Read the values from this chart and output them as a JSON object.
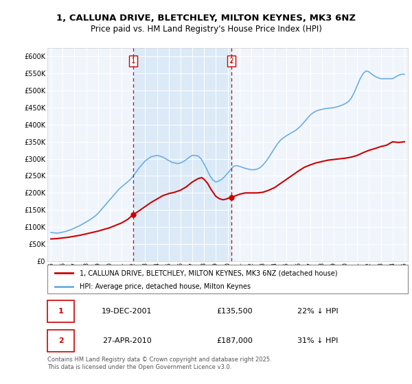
{
  "title1": "1, CALLUNA DRIVE, BLETCHLEY, MILTON KEYNES, MK3 6NZ",
  "title2": "Price paid vs. HM Land Registry's House Price Index (HPI)",
  "legend_line1": "1, CALLUNA DRIVE, BLETCHLEY, MILTON KEYNES, MK3 6NZ (detached house)",
  "legend_line2": "HPI: Average price, detached house, Milton Keynes",
  "transaction1_label": "1",
  "transaction1_date": "19-DEC-2001",
  "transaction1_price": "£135,500",
  "transaction1_hpi": "22% ↓ HPI",
  "transaction2_label": "2",
  "transaction2_date": "27-APR-2010",
  "transaction2_price": "£187,000",
  "transaction2_hpi": "31% ↓ HPI",
  "footer": "Contains HM Land Registry data © Crown copyright and database right 2025.\nThis data is licensed under the Open Government Licence v3.0.",
  "hpi_color": "#6aade4",
  "price_color": "#cc0000",
  "dashed_color": "#cc0000",
  "background_color": "#ffffff",
  "plot_bg": "#f0f5fb",
  "shade_color": "#d0e4f5",
  "ylim": [
    0,
    625000
  ],
  "yticks": [
    0,
    50000,
    100000,
    150000,
    200000,
    250000,
    300000,
    350000,
    400000,
    450000,
    500000,
    550000,
    600000
  ],
  "year_start": 1995,
  "year_end": 2025,
  "transaction1_year": 2001.97,
  "transaction2_year": 2010.32,
  "hpi_years": [
    1995.0,
    1995.25,
    1995.5,
    1995.75,
    1996.0,
    1996.25,
    1996.5,
    1996.75,
    1997.0,
    1997.25,
    1997.5,
    1997.75,
    1998.0,
    1998.25,
    1998.5,
    1998.75,
    1999.0,
    1999.25,
    1999.5,
    1999.75,
    2000.0,
    2000.25,
    2000.5,
    2000.75,
    2001.0,
    2001.25,
    2001.5,
    2001.75,
    2002.0,
    2002.25,
    2002.5,
    2002.75,
    2003.0,
    2003.25,
    2003.5,
    2003.75,
    2004.0,
    2004.25,
    2004.5,
    2004.75,
    2005.0,
    2005.25,
    2005.5,
    2005.75,
    2006.0,
    2006.25,
    2006.5,
    2006.75,
    2007.0,
    2007.25,
    2007.5,
    2007.75,
    2008.0,
    2008.25,
    2008.5,
    2008.75,
    2009.0,
    2009.25,
    2009.5,
    2009.75,
    2010.0,
    2010.25,
    2010.5,
    2010.75,
    2011.0,
    2011.25,
    2011.5,
    2011.75,
    2012.0,
    2012.25,
    2012.5,
    2012.75,
    2013.0,
    2013.25,
    2013.5,
    2013.75,
    2014.0,
    2014.25,
    2014.5,
    2014.75,
    2015.0,
    2015.25,
    2015.5,
    2015.75,
    2016.0,
    2016.25,
    2016.5,
    2016.75,
    2017.0,
    2017.25,
    2017.5,
    2017.75,
    2018.0,
    2018.25,
    2018.5,
    2018.75,
    2019.0,
    2019.25,
    2019.5,
    2019.75,
    2020.0,
    2020.25,
    2020.5,
    2020.75,
    2021.0,
    2021.25,
    2021.5,
    2021.75,
    2022.0,
    2022.25,
    2022.5,
    2022.75,
    2023.0,
    2023.25,
    2023.5,
    2023.75,
    2024.0,
    2024.25,
    2024.5,
    2024.75,
    2025.0
  ],
  "hpi_values": [
    84000,
    83000,
    82000,
    83000,
    85000,
    87000,
    90000,
    93000,
    97000,
    101000,
    105000,
    110000,
    115000,
    120000,
    126000,
    132000,
    140000,
    150000,
    160000,
    170000,
    180000,
    190000,
    200000,
    210000,
    218000,
    225000,
    232000,
    240000,
    250000,
    262000,
    274000,
    284000,
    294000,
    300000,
    306000,
    308000,
    310000,
    308000,
    305000,
    300000,
    295000,
    290000,
    288000,
    286000,
    288000,
    292000,
    298000,
    305000,
    310000,
    310000,
    308000,
    300000,
    285000,
    268000,
    250000,
    238000,
    232000,
    235000,
    240000,
    248000,
    258000,
    268000,
    278000,
    280000,
    278000,
    275000,
    272000,
    270000,
    268000,
    268000,
    270000,
    274000,
    282000,
    292000,
    305000,
    318000,
    332000,
    345000,
    355000,
    362000,
    368000,
    373000,
    378000,
    383000,
    390000,
    398000,
    408000,
    418000,
    428000,
    435000,
    440000,
    443000,
    445000,
    447000,
    448000,
    449000,
    450000,
    452000,
    455000,
    458000,
    462000,
    468000,
    478000,
    495000,
    515000,
    535000,
    550000,
    558000,
    555000,
    548000,
    542000,
    538000,
    535000,
    535000,
    535000,
    535000,
    535000,
    540000,
    545000,
    548000,
    548000
  ],
  "price_years": [
    1995.0,
    1995.5,
    1996.0,
    1996.5,
    1997.0,
    1997.5,
    1998.0,
    1998.5,
    1999.0,
    1999.5,
    2000.0,
    2000.5,
    2001.0,
    2001.5,
    2001.97,
    2002.5,
    2003.0,
    2003.5,
    2004.0,
    2004.5,
    2005.0,
    2005.5,
    2006.0,
    2006.5,
    2007.0,
    2007.5,
    2007.8,
    2008.0,
    2008.3,
    2008.6,
    2009.0,
    2009.3,
    2009.6,
    2009.9,
    2010.0,
    2010.32,
    2010.7,
    2011.0,
    2011.5,
    2012.0,
    2012.5,
    2013.0,
    2013.5,
    2014.0,
    2014.5,
    2015.0,
    2015.5,
    2016.0,
    2016.5,
    2017.0,
    2017.5,
    2018.0,
    2018.5,
    2019.0,
    2019.5,
    2020.0,
    2020.5,
    2021.0,
    2021.5,
    2022.0,
    2022.5,
    2023.0,
    2023.5,
    2024.0,
    2024.5,
    2025.0
  ],
  "price_values": [
    65000,
    66000,
    68000,
    70000,
    73000,
    76000,
    80000,
    84000,
    88000,
    93000,
    98000,
    105000,
    112000,
    122000,
    135500,
    148000,
    160000,
    172000,
    182000,
    192000,
    198000,
    202000,
    208000,
    218000,
    232000,
    242000,
    245000,
    240000,
    228000,
    210000,
    190000,
    183000,
    180000,
    182000,
    184000,
    187000,
    192000,
    196000,
    200000,
    200000,
    200000,
    202000,
    208000,
    216000,
    228000,
    240000,
    252000,
    264000,
    275000,
    282000,
    288000,
    292000,
    296000,
    298000,
    300000,
    302000,
    305000,
    310000,
    318000,
    325000,
    330000,
    336000,
    340000,
    350000,
    348000,
    350000
  ]
}
